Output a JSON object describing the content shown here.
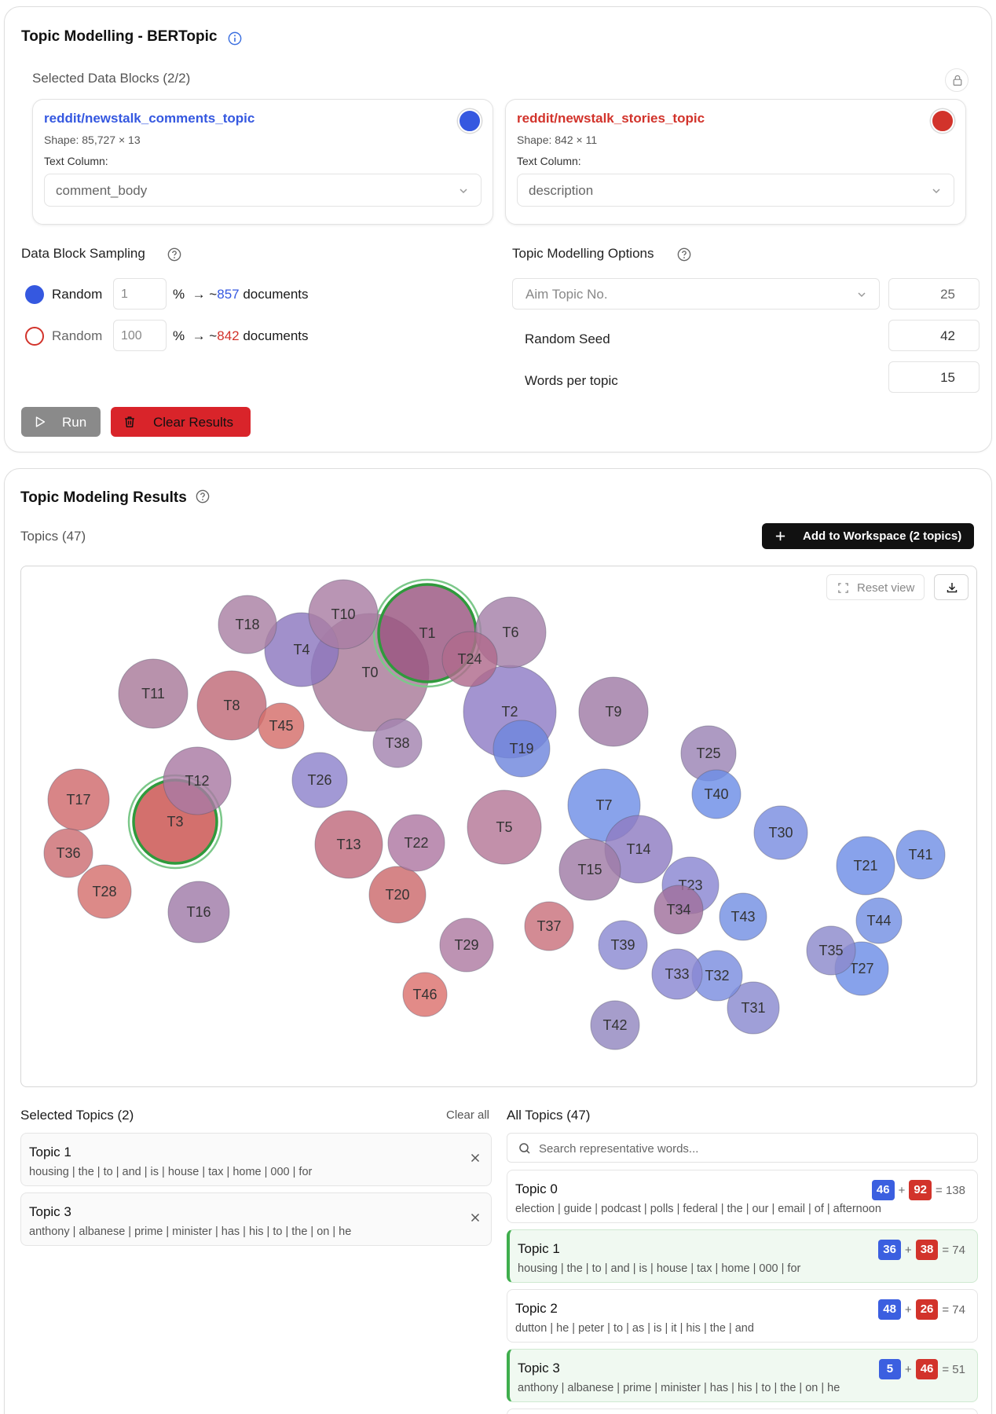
{
  "config": {
    "title": "Topic Modelling - BERTopic",
    "selected_blocks_label": "Selected Data Blocks (2/2)",
    "blocks": [
      {
        "name": "reddit/newstalk_comments_topic",
        "shape": "Shape: 85,727 × 13",
        "text_column_label": "Text Column:",
        "text_column": "comment_body",
        "color": "#3558e0"
      },
      {
        "name": "reddit/newstalk_stories_topic",
        "shape": "Shape: 842 × 11",
        "text_column_label": "Text Column:",
        "text_column": "description",
        "color": "#d2332b"
      }
    ],
    "sampling": {
      "label": "Data Block Sampling",
      "rows": [
        {
          "method": "Random",
          "value": "1",
          "pct": "%",
          "arrow": "→ ~",
          "count": "857",
          "suffix": "documents"
        },
        {
          "method": "Random",
          "value": "100",
          "pct": "%",
          "arrow": "→ ~",
          "count": "842",
          "suffix": "documents"
        }
      ]
    },
    "options": {
      "label": "Topic Modelling Options",
      "aim_select": "Aim Topic No.",
      "aim_value": "25",
      "seed_label": "Random Seed",
      "seed_value": "42",
      "words_label": "Words per topic",
      "words_value": "15"
    },
    "run_label": "Run",
    "clear_label": "Clear Results"
  },
  "results": {
    "title": "Topic Modeling Results",
    "topics_count_label": "Topics (47)",
    "add_workspace_label": "Add to Workspace (2 topics)",
    "reset_view_label": "Reset view",
    "selected_label": "Selected Topics (2)",
    "clear_all_label": "Clear all",
    "all_label": "All Topics (47)",
    "search_placeholder": "Search representative words...",
    "selected_topics": [
      {
        "name": "Topic 1",
        "words": "housing | the | to | and | is | house | tax | home | 000 | for"
      },
      {
        "name": "Topic 3",
        "words": "anthony | albanese | prime | minister | has | his | to | the | on | he"
      }
    ],
    "all_topics": [
      {
        "name": "Topic 0",
        "words": "election | guide | podcast | polls | federal | the | our | email | of | afternoon",
        "blue": "46",
        "red": "92",
        "total": "= 138",
        "selected": false
      },
      {
        "name": "Topic 1",
        "words": "housing | the | to | and | is | house | tax | home | 000 | for",
        "blue": "36",
        "red": "38",
        "total": "= 74",
        "selected": true
      },
      {
        "name": "Topic 2",
        "words": "dutton | he | peter | to | as | is | it | his | the | and",
        "blue": "48",
        "red": "26",
        "total": "= 74",
        "selected": false
      },
      {
        "name": "Topic 3",
        "words": "anthony | albanese | prime | minister | has | his | to | the | on | he",
        "blue": "5",
        "red": "46",
        "total": "= 51",
        "selected": true
      }
    ]
  },
  "bubbles": [
    {
      "label": "T0",
      "color": "#a87a98"
    },
    {
      "label": "T1",
      "color": "#9a5680",
      "selected": true
    },
    {
      "label": "T2",
      "color": "#8f7dc6"
    },
    {
      "label": "T3",
      "color": "#c9514d",
      "selected": true
    },
    {
      "label": "T4",
      "color": "#8c77c0"
    },
    {
      "label": "T5",
      "color": "#b57797"
    },
    {
      "label": "T6",
      "color": "#a580a8"
    },
    {
      "label": "T7",
      "color": "#6f8fe6"
    },
    {
      "label": "T8",
      "color": "#c06a78"
    },
    {
      "label": "T9",
      "color": "#a07ba6"
    },
    {
      "label": "T10",
      "color": "#a97ea3"
    },
    {
      "label": "T11",
      "color": "#a87a9a"
    },
    {
      "label": "T12",
      "color": "#a97aa3"
    },
    {
      "label": "T13",
      "color": "#c06a7c"
    },
    {
      "label": "T14",
      "color": "#8f7cc2"
    },
    {
      "label": "T15",
      "color": "#a07ba6"
    },
    {
      "label": "T16",
      "color": "#a07ba8"
    },
    {
      "label": "T17",
      "color": "#d06a6d"
    },
    {
      "label": "T18",
      "color": "#a980a3"
    },
    {
      "label": "T19",
      "color": "#6f86dd"
    },
    {
      "label": "T20",
      "color": "#cc6a6d"
    },
    {
      "label": "T21",
      "color": "#6e8ee7"
    },
    {
      "label": "T22",
      "color": "#ae78a2"
    },
    {
      "label": "T23",
      "color": "#8a86d2"
    },
    {
      "label": "T24",
      "color": "#b06a8c"
    },
    {
      "label": "T25",
      "color": "#9b84b4"
    },
    {
      "label": "T26",
      "color": "#8d83cc"
    },
    {
      "label": "T27",
      "color": "#6d8de6"
    },
    {
      "label": "T28",
      "color": "#d4706e"
    },
    {
      "label": "T29",
      "color": "#ae7ba2"
    },
    {
      "label": "T30",
      "color": "#7a8ee0"
    },
    {
      "label": "T31",
      "color": "#8a8ad0"
    },
    {
      "label": "T32",
      "color": "#7b8edf"
    },
    {
      "label": "T33",
      "color": "#8a88d2"
    },
    {
      "label": "T34",
      "color": "#a0709c"
    },
    {
      "label": "T35",
      "color": "#8c8acc"
    },
    {
      "label": "T36",
      "color": "#cc6e73"
    },
    {
      "label": "T37",
      "color": "#c9727d"
    },
    {
      "label": "T38",
      "color": "#a484b0"
    },
    {
      "label": "T39",
      "color": "#8b8ad2"
    },
    {
      "label": "T40",
      "color": "#6d8de6"
    },
    {
      "label": "T41",
      "color": "#7190e5"
    },
    {
      "label": "T42",
      "color": "#9387c0"
    },
    {
      "label": "T43",
      "color": "#7490e3"
    },
    {
      "label": "T44",
      "color": "#7490e3"
    },
    {
      "label": "T45",
      "color": "#d46e6a"
    },
    {
      "label": "T46",
      "color": "#dc726e"
    }
  ]
}
